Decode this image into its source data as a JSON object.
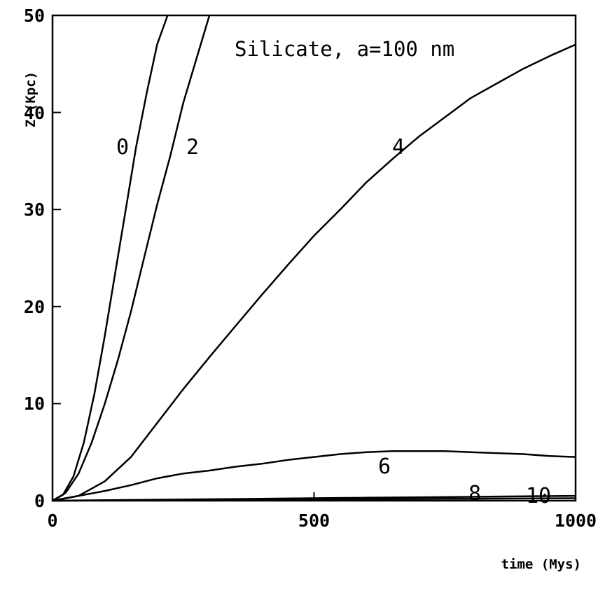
{
  "chart_data": {
    "type": "line",
    "title": "Silicate, a=100 nm",
    "xlabel": "time (Mys)",
    "ylabel": "Z (Kpc)",
    "xlim": [
      0,
      1000
    ],
    "ylim": [
      0,
      50
    ],
    "x_ticks": [
      "0",
      "500",
      "1000"
    ],
    "y_ticks": [
      "0",
      "10",
      "20",
      "30",
      "40",
      "50"
    ],
    "grid": false,
    "series": [
      {
        "name": "0",
        "x": [
          0,
          20,
          40,
          60,
          80,
          100,
          120,
          140,
          160,
          180,
          200,
          220
        ],
        "y": [
          0,
          0.6,
          2.5,
          6.0,
          11.0,
          17.0,
          23.5,
          30.0,
          36.5,
          42.0,
          47.0,
          50.0
        ]
      },
      {
        "name": "2",
        "x": [
          0,
          25,
          50,
          75,
          100,
          125,
          150,
          175,
          200,
          225,
          250,
          275,
          300
        ],
        "y": [
          0,
          0.8,
          2.8,
          6.0,
          10.0,
          14.5,
          19.5,
          25.0,
          30.5,
          35.5,
          41.0,
          45.5,
          50.0
        ]
      },
      {
        "name": "4",
        "x": [
          0,
          50,
          100,
          150,
          200,
          250,
          300,
          350,
          400,
          450,
          500,
          550,
          600,
          650,
          700,
          750,
          800,
          850,
          900,
          950,
          1000
        ],
        "y": [
          0,
          0.5,
          2.0,
          4.5,
          8.0,
          11.5,
          14.8,
          18.0,
          21.2,
          24.3,
          27.3,
          30.0,
          32.8,
          35.2,
          37.5,
          39.5,
          41.5,
          43.0,
          44.5,
          45.8,
          47.0
        ]
      },
      {
        "name": "6",
        "x": [
          0,
          50,
          100,
          150,
          200,
          250,
          300,
          350,
          400,
          450,
          500,
          550,
          600,
          650,
          700,
          750,
          800,
          850,
          900,
          950,
          1000
        ],
        "y": [
          0,
          0.5,
          1.0,
          1.6,
          2.3,
          2.8,
          3.1,
          3.5,
          3.8,
          4.2,
          4.5,
          4.8,
          5.0,
          5.1,
          5.1,
          5.1,
          5.0,
          4.9,
          4.8,
          4.6,
          4.5
        ]
      },
      {
        "name": "8",
        "x": [
          0,
          200,
          400,
          600,
          800,
          1000
        ],
        "y": [
          0,
          0.1,
          0.2,
          0.3,
          0.4,
          0.5
        ]
      },
      {
        "name": "10",
        "x": [
          0,
          200,
          400,
          600,
          800,
          1000
        ],
        "y": [
          0,
          0.05,
          0.1,
          0.15,
          0.2,
          0.25
        ]
      }
    ]
  }
}
